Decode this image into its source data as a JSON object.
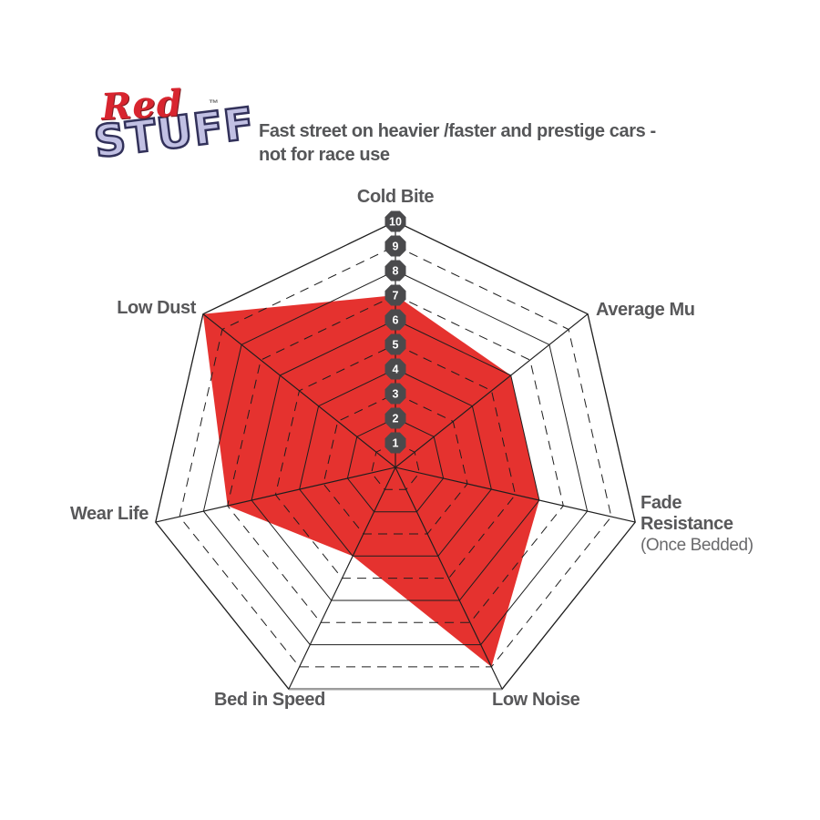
{
  "logo": {
    "red_text": "Red",
    "tm": "™",
    "stuff_text": "STUFF",
    "red_color": "#d8252f",
    "stuff_fill": "#c1c0e3",
    "stuff_outline": "#32315a"
  },
  "header": {
    "line1": "Fast street on heavier /faster and prestige cars -",
    "line2": "not for race use"
  },
  "labels": {
    "cold_bite": "Cold Bite",
    "average_mu": "Average Mu",
    "fade_line1": "Fade",
    "fade_line2": "Resistance",
    "fade_sub": "(Once Bedded)",
    "low_noise": "Low Noise",
    "bed_in_speed": "Bed in Speed",
    "wear_life": "Wear Life",
    "low_dust": "Low Dust"
  },
  "chart_data": {
    "type": "radar",
    "categories": [
      "Cold Bite",
      "Average Mu",
      "Fade Resistance (Once Bedded)",
      "Low Noise",
      "Bed in Speed",
      "Wear Life",
      "Low Dust"
    ],
    "values": [
      7,
      6,
      6,
      9,
      4,
      7,
      10
    ],
    "max": 10,
    "rings": 10,
    "ring_style": "even-solid-odd-dashed",
    "scale_labels": [
      "1",
      "2",
      "3",
      "4",
      "5",
      "6",
      "7",
      "8",
      "9",
      "10"
    ],
    "legend": "none",
    "grid": "on",
    "colors": {
      "fill": "#e5322f",
      "grid": "#1e1e1e",
      "outer_bottom_edge": "#9c9c9c",
      "badge": "#4a4a4c",
      "badge_text": "#ffffff",
      "label": "#58585a"
    }
  }
}
